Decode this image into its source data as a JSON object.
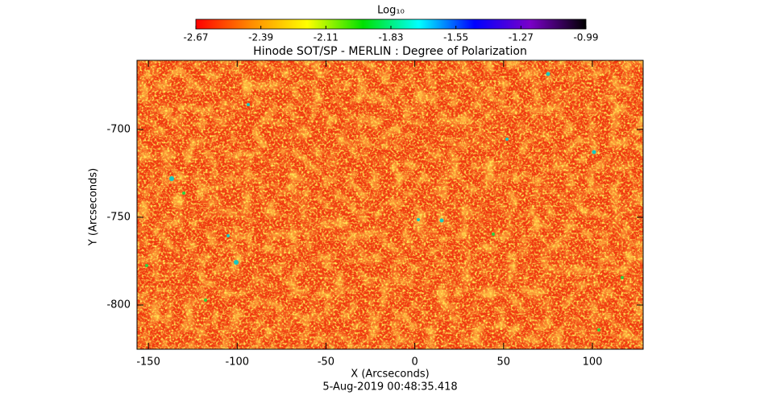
{
  "chart_data": {
    "type": "image",
    "title": "Hinode SOT/SP - MERLIN : Degree of Polarization",
    "x_label": "X (Arcseconds)",
    "y_label": "Y (Arcseconds)",
    "timestamp": "5-Aug-2019 00:48:35.418",
    "xlim": [
      -156.4,
      128.6
    ],
    "xticks": [
      -150,
      -100,
      -50,
      0,
      50,
      100
    ],
    "ylim": [
      -825.2,
      -660.6
    ],
    "yticks": [
      -800,
      -750,
      -700
    ],
    "colorbar": {
      "label": "Log₁₀",
      "lim": [
        -2.67,
        -0.99
      ],
      "ticks": [
        -2.67,
        -2.39,
        -2.11,
        -1.83,
        -1.55,
        -1.27,
        -0.99
      ],
      "colors": [
        "#ff0000",
        "#ff8c00",
        "#ffff00",
        "#00e000",
        "#00ffff",
        "#0000ff",
        "#7a00c8",
        "#000000"
      ]
    }
  }
}
